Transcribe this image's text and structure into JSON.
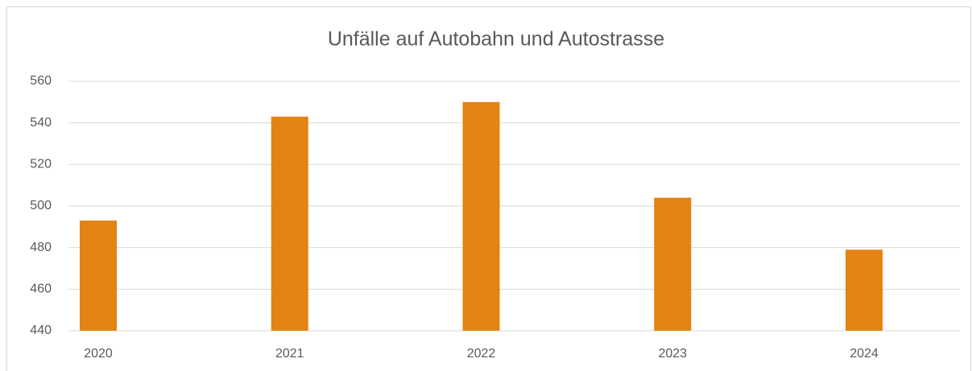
{
  "chart_data": {
    "type": "bar",
    "title": "Unfälle auf Autobahn und Autostrasse",
    "categories": [
      "2020",
      "2021",
      "2022",
      "2023",
      "2024"
    ],
    "values": [
      493,
      543,
      550,
      504,
      479
    ],
    "color": "#e48312",
    "ylim": [
      440,
      560
    ],
    "yticks": [
      440,
      460,
      480,
      500,
      520,
      540,
      560
    ],
    "grid": true
  }
}
